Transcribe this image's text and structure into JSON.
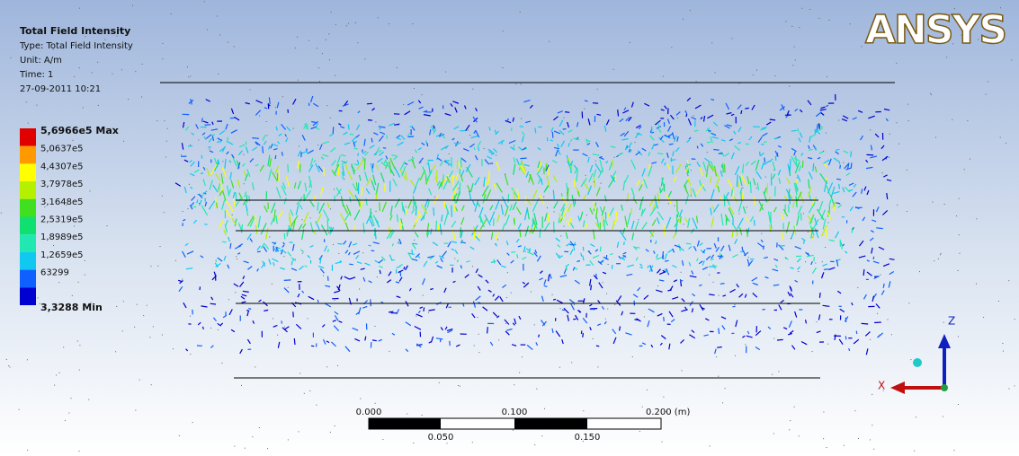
{
  "header": {
    "title": "Total Field Intensity",
    "type": "Type: Total Field Intensity",
    "unit": "Unit: A/m",
    "time": "Time: 1",
    "date": "27-09-2011 10:21"
  },
  "legend": {
    "entries": [
      {
        "label": "5,6966e5 Max",
        "color": "#e00000"
      },
      {
        "label": "5,0637e5",
        "color": "#ff9900"
      },
      {
        "label": "4,4307e5",
        "color": "#ffff00"
      },
      {
        "label": "3,7978e5",
        "color": "#b4f000"
      },
      {
        "label": "3,1648e5",
        "color": "#40e020"
      },
      {
        "label": "2,5319e5",
        "color": "#10e070"
      },
      {
        "label": "1,8989e5",
        "color": "#20e8b0"
      },
      {
        "label": "1,2659e5",
        "color": "#10c8f0"
      },
      {
        "label": "63299",
        "color": "#1060ff"
      },
      {
        "label": "3,3288 Min",
        "color": "#0000d0"
      }
    ]
  },
  "logo": "ANSYS",
  "scale_bar": {
    "top_labels": [
      "0.000",
      "0.100",
      "0.200 (m)"
    ],
    "bottom_labels": [
      "0.050",
      "0.150"
    ]
  },
  "triad": {
    "z": "Z",
    "x": "X"
  }
}
